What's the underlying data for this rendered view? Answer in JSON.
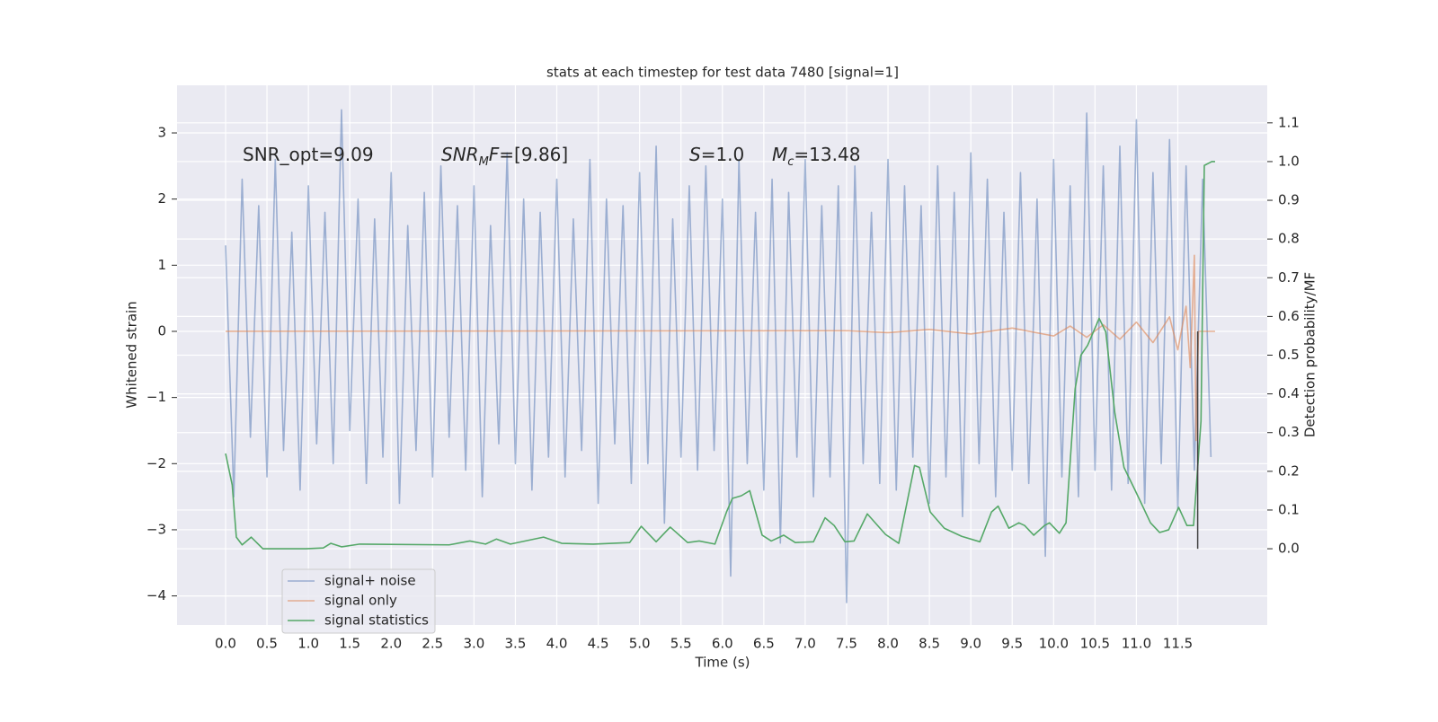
{
  "chart_data": {
    "type": "line",
    "title": "stats at each timestep for test data 7480 [signal=1]",
    "x_label": "Time (s)",
    "y_label": "Whitened strain",
    "y2_label": "Detection probability/MF",
    "background": "#eaeaf2",
    "grid": true,
    "legend": "lower left",
    "xlim": [
      -0.586,
      12.58
    ],
    "ylim": [
      -4.44,
      3.72
    ],
    "y2lim": [
      -0.197,
      1.197
    ],
    "xticks": [
      {
        "value": 0,
        "label": "0.0"
      },
      {
        "value": 0.5,
        "label": "0.5"
      },
      {
        "value": 1,
        "label": "1.0"
      },
      {
        "value": 1.5,
        "label": "1.5"
      },
      {
        "value": 2,
        "label": "2.0"
      },
      {
        "value": 2.5,
        "label": "2.5"
      },
      {
        "value": 3,
        "label": "3.0"
      },
      {
        "value": 3.5,
        "label": "3.5"
      },
      {
        "value": 4,
        "label": "4.0"
      },
      {
        "value": 4.5,
        "label": "4.5"
      },
      {
        "value": 5,
        "label": "5.0"
      },
      {
        "value": 5.5,
        "label": "5.5"
      },
      {
        "value": 6,
        "label": "6.0"
      },
      {
        "value": 6.5,
        "label": "6.5"
      },
      {
        "value": 7,
        "label": "7.0"
      },
      {
        "value": 7.5,
        "label": "7.5"
      },
      {
        "value": 8,
        "label": "8.0"
      },
      {
        "value": 8.5,
        "label": "8.5"
      },
      {
        "value": 9,
        "label": "9.0"
      },
      {
        "value": 9.5,
        "label": "9.5"
      },
      {
        "value": 10,
        "label": "10.0"
      },
      {
        "value": 10.5,
        "label": "10.5"
      },
      {
        "value": 11,
        "label": "11.0"
      },
      {
        "value": 11.5,
        "label": "11.5"
      }
    ],
    "yticks": [
      {
        "value": -4,
        "label": "−4"
      },
      {
        "value": -3,
        "label": "−3"
      },
      {
        "value": -2,
        "label": "−2"
      },
      {
        "value": -1,
        "label": "−1"
      },
      0,
      1,
      2,
      3
    ],
    "y2ticks": [
      {
        "value": 0,
        "label": "0.0"
      },
      {
        "value": 0.1,
        "label": "0.1"
      },
      {
        "value": 0.2,
        "label": "0.2"
      },
      {
        "value": 0.3,
        "label": "0.3"
      },
      {
        "value": 0.4,
        "label": "0.4"
      },
      {
        "value": 0.5,
        "label": "0.5"
      },
      {
        "value": 0.6,
        "label": "0.6"
      },
      {
        "value": 0.7,
        "label": "0.7"
      },
      {
        "value": 0.8,
        "label": "0.8"
      },
      {
        "value": 0.9,
        "label": "0.9"
      },
      {
        "value": 1.0,
        "label": "1.0"
      },
      {
        "value": 1.1,
        "label": "1.1"
      }
    ],
    "annotations": [
      [
        {
          "t": "SNR_opt=9.09",
          "style": "normal"
        }
      ],
      [
        {
          "t": "SNR",
          "style": "italic"
        },
        {
          "t": "M",
          "style": "sub"
        },
        {
          "t": "F",
          "style": "italic"
        },
        {
          "t": "=[9.86]",
          "style": "normal"
        }
      ],
      [
        {
          "t": "S",
          "style": "italic"
        },
        {
          "t": "=1.0",
          "style": "normal"
        }
      ],
      [
        {
          "t": "M",
          "style": "italic"
        },
        {
          "t": "c",
          "style": "sub"
        },
        {
          "t": "=13.48",
          "style": "normal"
        }
      ]
    ],
    "vline": {
      "x": 11.74,
      "color": "#444444"
    },
    "series": [
      {
        "name": "signal+ noise",
        "color": "#4c72b0",
        "alpha": 0.5,
        "axis": "y",
        "x": [
          0,
          0.1,
          0.2,
          0.3,
          0.4,
          0.5,
          0.6,
          0.7,
          0.8,
          0.9,
          1,
          1.1,
          1.2,
          1.3,
          1.4,
          1.5,
          1.6,
          1.7,
          1.8,
          1.9,
          2,
          2.1,
          2.2,
          2.3,
          2.4,
          2.5,
          2.6,
          2.7,
          2.8,
          2.9,
          3,
          3.1,
          3.2,
          3.3,
          3.4,
          3.5,
          3.6,
          3.7,
          3.8,
          3.9,
          4,
          4.1,
          4.2,
          4.3,
          4.4,
          4.5,
          4.6,
          4.7,
          4.8,
          4.9,
          5,
          5.1,
          5.2,
          5.3,
          5.4,
          5.5,
          5.6,
          5.7,
          5.8,
          5.9,
          6,
          6.1,
          6.2,
          6.3,
          6.4,
          6.5,
          6.6,
          6.7,
          6.8,
          6.9,
          7,
          7.1,
          7.2,
          7.3,
          7.4,
          7.5,
          7.6,
          7.7,
          7.8,
          7.9,
          8,
          8.1,
          8.2,
          8.3,
          8.4,
          8.5,
          8.6,
          8.7,
          8.8,
          8.9,
          9,
          9.1,
          9.2,
          9.3,
          9.4,
          9.5,
          9.6,
          9.7,
          9.8,
          9.9,
          10,
          10.1,
          10.2,
          10.3,
          10.4,
          10.5,
          10.6,
          10.7,
          10.8,
          10.9,
          11,
          11.1,
          11.2,
          11.3,
          11.4,
          11.5,
          11.6,
          11.7,
          11.8,
          11.9
        ],
        "values": [
          1.3,
          -2.5,
          2.3,
          -1.6,
          1.9,
          -2.2,
          2.6,
          -1.8,
          1.5,
          -2.4,
          2.2,
          -1.7,
          1.8,
          -2.0,
          3.35,
          -1.5,
          2.0,
          -2.3,
          1.7,
          -1.9,
          2.4,
          -2.6,
          1.6,
          -1.8,
          2.1,
          -2.2,
          2.5,
          -1.6,
          1.9,
          -2.1,
          2.2,
          -2.5,
          1.6,
          -1.7,
          2.7,
          -2.0,
          2.0,
          -2.4,
          1.8,
          -1.9,
          2.3,
          -2.2,
          1.7,
          -1.8,
          2.6,
          -2.6,
          2.0,
          -1.7,
          1.9,
          -2.3,
          2.4,
          -2.0,
          2.8,
          -2.9,
          1.7,
          -1.9,
          2.2,
          -2.1,
          2.5,
          -1.8,
          2.0,
          -3.7,
          2.6,
          -2.0,
          1.8,
          -2.4,
          2.3,
          -3.2,
          2.1,
          -1.9,
          2.6,
          -2.5,
          1.9,
          -2.2,
          2.2,
          -4.1,
          2.5,
          -2.0,
          1.8,
          -2.3,
          2.6,
          -2.4,
          2.2,
          -1.9,
          1.9,
          -2.6,
          2.5,
          -2.2,
          2.1,
          -2.8,
          2.7,
          -2.0,
          2.3,
          -2.5,
          1.8,
          -2.1,
          2.4,
          -2.3,
          2.0,
          -3.4,
          2.6,
          -2.2,
          2.2,
          -2.5,
          3.3,
          -2.1,
          2.5,
          -2.4,
          2.8,
          -2.3,
          3.2,
          -2.6,
          2.4,
          -2.0,
          2.9,
          -2.7,
          2.5,
          -2.1,
          2.3,
          -1.9
        ]
      },
      {
        "name": "signal only",
        "color": "#dd8452",
        "alpha": 0.6,
        "axis": "y",
        "x": [
          0,
          7.5,
          8.0,
          8.5,
          9.0,
          9.5,
          10.0,
          10.2,
          10.4,
          10.6,
          10.8,
          11.0,
          11.2,
          11.4,
          11.5,
          11.6,
          11.65,
          11.7,
          11.72,
          11.75,
          11.95
        ],
        "values": [
          0,
          0.01,
          -0.02,
          0.03,
          -0.04,
          0.05,
          -0.07,
          0.08,
          -0.09,
          0.1,
          -0.12,
          0.14,
          -0.17,
          0.22,
          -0.28,
          0.38,
          -0.55,
          1.15,
          -1.65,
          0,
          0
        ]
      },
      {
        "name": "signal statistics",
        "color": "#55a868",
        "alpha": 1,
        "axis": "y2",
        "x": [
          0,
          0.08,
          0.13,
          0.2,
          0.31,
          0.45,
          0.97,
          1.18,
          1.27,
          1.4,
          1.62,
          2.7,
          2.95,
          3.14,
          3.27,
          3.44,
          3.84,
          4.06,
          4.44,
          4.88,
          5.02,
          5.2,
          5.37,
          5.58,
          5.72,
          5.91,
          6.05,
          6.12,
          6.23,
          6.33,
          6.48,
          6.59,
          6.74,
          6.88,
          7.1,
          7.24,
          7.35,
          7.48,
          7.59,
          7.75,
          7.97,
          8.13,
          8.32,
          8.38,
          8.51,
          8.68,
          8.89,
          9.11,
          9.25,
          9.33,
          9.46,
          9.58,
          9.65,
          9.76,
          9.89,
          9.95,
          10.07,
          10.15,
          10.26,
          10.33,
          10.41,
          10.55,
          10.63,
          10.74,
          10.85,
          10.98,
          11.17,
          11.28,
          11.39,
          11.51,
          11.61,
          11.69,
          11.78,
          11.82,
          11.91,
          11.95
        ],
        "values": [
          0.246,
          0.165,
          0.03,
          0.01,
          0.03,
          0.0,
          0.0,
          0.002,
          0.014,
          0.005,
          0.012,
          0.01,
          0.02,
          0.012,
          0.025,
          0.012,
          0.03,
          0.014,
          0.012,
          0.016,
          0.058,
          0.018,
          0.056,
          0.016,
          0.02,
          0.012,
          0.095,
          0.13,
          0.137,
          0.15,
          0.035,
          0.02,
          0.035,
          0.016,
          0.018,
          0.08,
          0.06,
          0.018,
          0.02,
          0.09,
          0.037,
          0.014,
          0.215,
          0.21,
          0.095,
          0.053,
          0.032,
          0.018,
          0.095,
          0.11,
          0.053,
          0.067,
          0.06,
          0.035,
          0.06,
          0.067,
          0.04,
          0.067,
          0.413,
          0.5,
          0.525,
          0.595,
          0.56,
          0.35,
          0.21,
          0.153,
          0.067,
          0.042,
          0.049,
          0.107,
          0.06,
          0.06,
          0.33,
          0.99,
          1.0,
          1.0
        ]
      }
    ]
  }
}
